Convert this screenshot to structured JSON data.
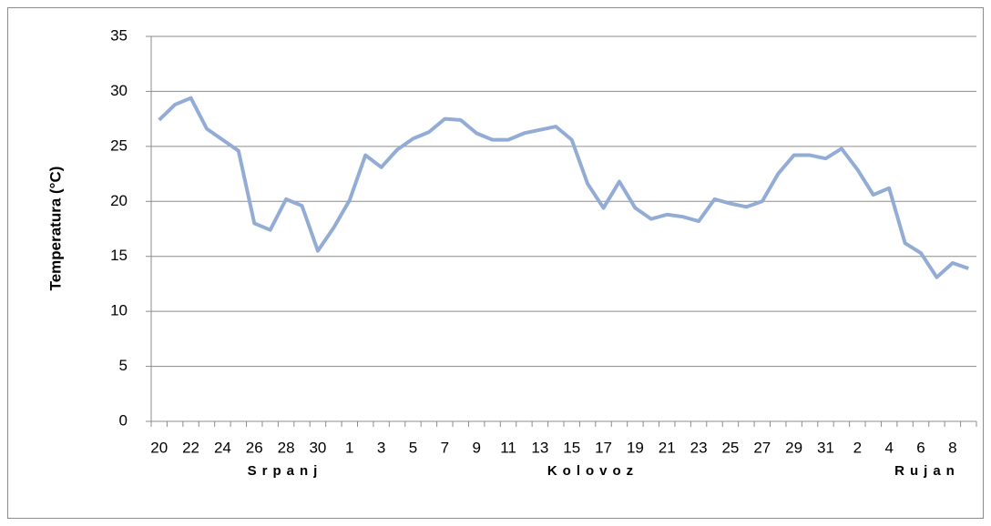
{
  "chart_data": {
    "type": "line",
    "ylabel": "Temperatura (°C)",
    "categories": [
      "20",
      null,
      "22",
      null,
      "24",
      null,
      "26",
      null,
      "28",
      null,
      "30",
      null,
      "1",
      null,
      "3",
      null,
      "5",
      null,
      "7",
      null,
      "9",
      null,
      "11",
      null,
      "13",
      null,
      "15",
      null,
      "17",
      null,
      "19",
      null,
      "21",
      null,
      "23",
      null,
      "25",
      null,
      "27",
      null,
      "29",
      null,
      "31",
      null,
      "2",
      null,
      "4",
      null,
      "6",
      null,
      "8",
      null
    ],
    "months": [
      "Srpanj",
      "Kolovoz",
      "Rujan"
    ],
    "series": [
      {
        "color": "#93acd5",
        "values": [
          27.4,
          28.8,
          29.4,
          26.6,
          25.6,
          24.6,
          18.0,
          17.4,
          20.2,
          19.6,
          15.5,
          17.6,
          20.1,
          24.2,
          23.1,
          24.7,
          25.7,
          26.3,
          27.5,
          27.4,
          26.2,
          25.6,
          25.6,
          26.2,
          26.5,
          26.8,
          25.6,
          21.6,
          19.4,
          21.8,
          19.4,
          18.4,
          18.8,
          18.6,
          18.2,
          20.2,
          19.8,
          19.5,
          20.0,
          22.5,
          24.2,
          24.2,
          23.9,
          24.8,
          22.9,
          20.6,
          21.2,
          16.2,
          15.3,
          13.1,
          14.4,
          13.9
        ]
      }
    ],
    "ylim": [
      0,
      35
    ],
    "yticks": [
      0,
      5,
      10,
      15,
      20,
      25,
      30,
      35
    ],
    "grid": true
  }
}
